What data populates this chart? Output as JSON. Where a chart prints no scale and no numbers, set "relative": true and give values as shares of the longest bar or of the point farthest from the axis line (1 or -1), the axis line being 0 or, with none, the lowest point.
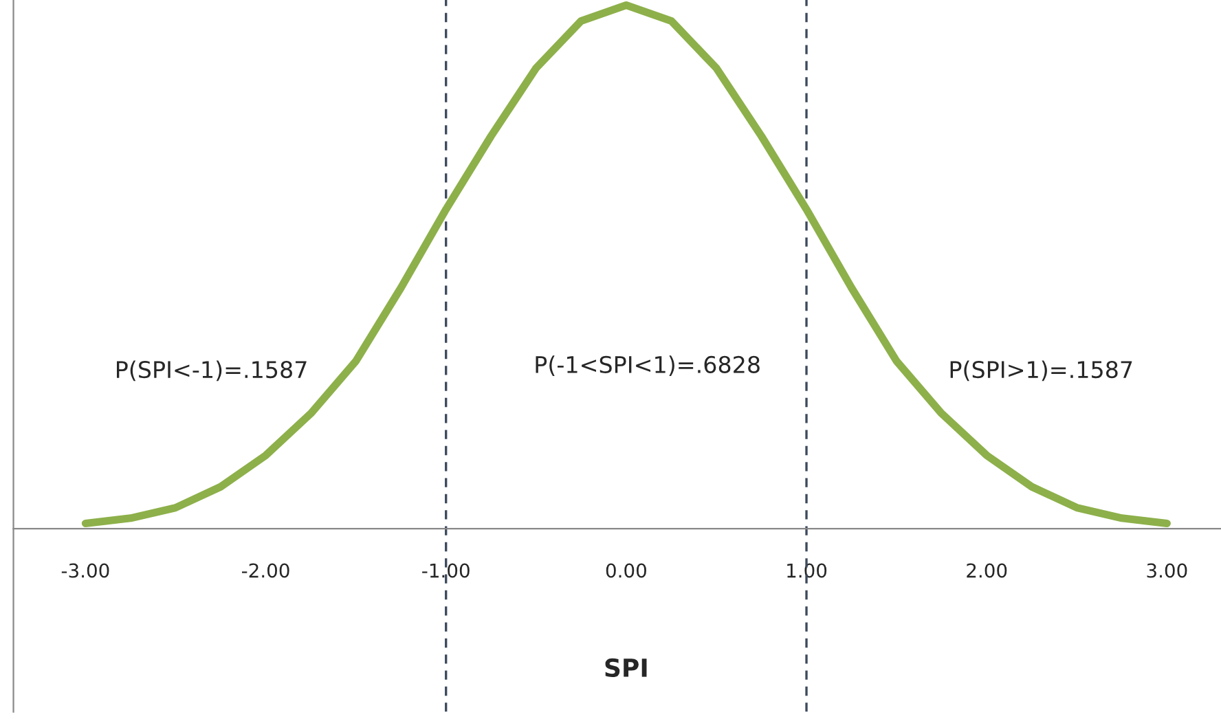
{
  "chart_data": {
    "type": "line",
    "relative": true,
    "xlabel": "SPI",
    "xlim": [
      -3.4,
      3.3
    ],
    "xticks": [
      {
        "value": -3,
        "label": "-3.00"
      },
      {
        "value": -2,
        "label": "-2.00"
      },
      {
        "value": -1,
        "label": "-1.00"
      },
      {
        "value": 0,
        "label": "0.00"
      },
      {
        "value": 1,
        "label": "1.00"
      },
      {
        "value": 2,
        "label": "2.00"
      },
      {
        "value": 3,
        "label": "3.00"
      }
    ],
    "series": [
      {
        "color": "#8db04a",
        "x": [
          -3,
          -2.75,
          -2.5,
          -2.25,
          -2,
          -1.75,
          -1.5,
          -1.25,
          -1,
          -0.75,
          -0.5,
          -0.25,
          0,
          0.25,
          0.5,
          0.75,
          1,
          1.25,
          1.5,
          1.75,
          2,
          2.25,
          2.5,
          2.75,
          3
        ],
        "values": [
          0.01,
          0.02,
          0.04,
          0.08,
          0.14,
          0.22,
          0.32,
          0.46,
          0.61,
          0.75,
          0.88,
          0.97,
          1,
          0.97,
          0.88,
          0.75,
          0.61,
          0.46,
          0.32,
          0.22,
          0.14,
          0.08,
          0.04,
          0.02,
          0.01
        ]
      }
    ],
    "ref_lines": [
      {
        "axis": "x",
        "value": -1,
        "color": "#3d4a5c",
        "line_style": "dashed"
      },
      {
        "axis": "x",
        "value": 1,
        "color": "#3d4a5c",
        "line_style": "dashed"
      }
    ],
    "annotations": [
      "P(SPI<-1)=.1587",
      "P(-1<SPI<1)=.6828",
      "P(SPI>1)=.1587"
    ],
    "grid": false,
    "legend": false,
    "marker": "none",
    "line_style": "solid"
  }
}
